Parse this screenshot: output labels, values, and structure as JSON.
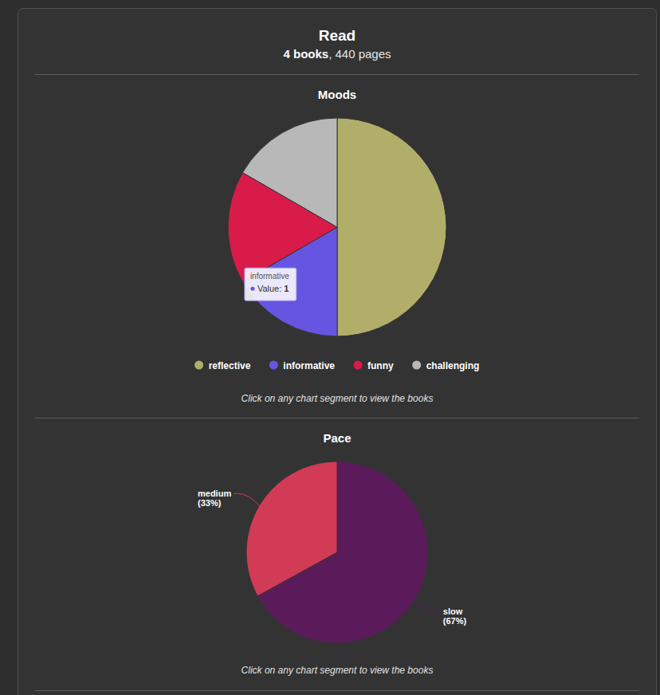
{
  "header": {
    "title": "Read",
    "books": "4 books",
    "pages": ", 440 pages"
  },
  "chart_data": [
    {
      "type": "pie",
      "title": "Moods",
      "categories": [
        "reflective",
        "informative",
        "funny",
        "challenging"
      ],
      "values": [
        3,
        1,
        1,
        1
      ],
      "colors": [
        "#b1ae6a",
        "#6655e0",
        "#d91b4a",
        "#b8b8b8"
      ],
      "legend": "bottom",
      "tooltip": {
        "title": "informative",
        "label": "Value:",
        "value": 1
      },
      "annotation": "Click on any chart segment to view the books"
    },
    {
      "type": "pie",
      "title": "Pace",
      "categories": [
        "slow",
        "medium"
      ],
      "values": [
        67,
        33
      ],
      "value_labels": [
        "(67%)",
        "(33%)"
      ],
      "colors": [
        "#5b1b5b",
        "#d13b55"
      ],
      "data_labels": true,
      "annotation": "Click on any chart segment to view the books"
    }
  ]
}
